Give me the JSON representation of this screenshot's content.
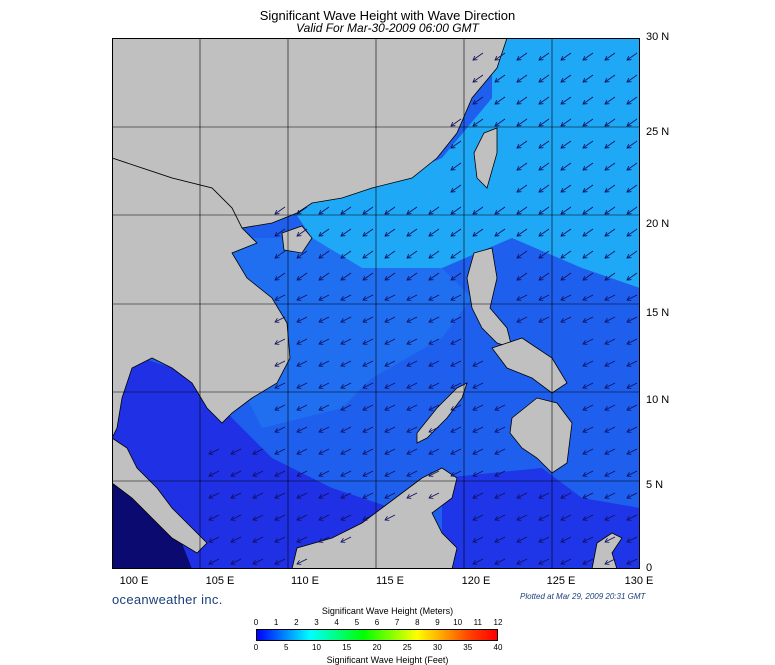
{
  "header": {
    "title": "Significant Wave Height with Wave Direction",
    "subtitle": "Valid For Mar-30-2009 06:00 GMT"
  },
  "map": {
    "lat_labels": [
      "30 N",
      "25 N",
      "20 N",
      "15 N",
      "10 N",
      "5 N",
      "0"
    ],
    "lon_labels": [
      "100 E",
      "105 E",
      "110 E",
      "115 E",
      "120 E",
      "125 E",
      "130 E"
    ],
    "land_color": "#c0c0c0",
    "sea_colors": {
      "deep": "#1f2be0",
      "mid": "#1f6ff0",
      "light": "#1fa8f5",
      "cyan": "#20d8f8",
      "dark": "#0a0a70"
    },
    "arrow_direction": "from northeast toward southwest"
  },
  "footer": {
    "brand": "oceanweather inc.",
    "plotted": "Plotted at Mar 29, 2009 20:31 GMT"
  },
  "colorbar": {
    "meters_title": "Significant Wave Height (Meters)",
    "meters_ticks": [
      "0",
      "1",
      "2",
      "3",
      "4",
      "5",
      "6",
      "7",
      "8",
      "9",
      "10",
      "11",
      "12"
    ],
    "feet_ticks": [
      "0",
      "5",
      "10",
      "15",
      "20",
      "25",
      "30",
      "35",
      "40"
    ],
    "feet_title": "Significant Wave Height (Feet)",
    "gradient_stops": [
      "#0000ff",
      "#0080ff",
      "#00ffff",
      "#00ff80",
      "#00ff00",
      "#80ff00",
      "#ffff00",
      "#ffa000",
      "#ff4000",
      "#ff0000"
    ]
  }
}
